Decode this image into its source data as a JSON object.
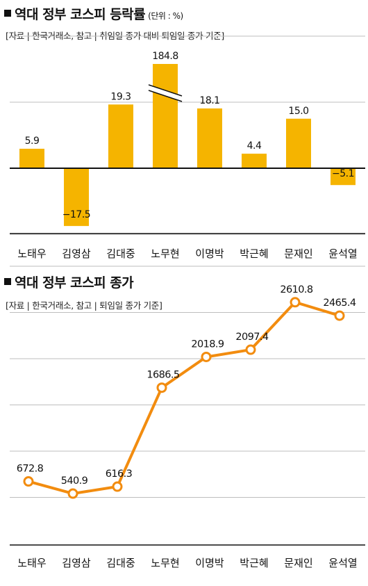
{
  "chart1": {
    "title": "역대 정부 코스피 등락률",
    "unit": "(단위 : %)",
    "source": "[자료 | 한국거래소, 참고 | 취임일 종가 대비 퇴임일 종가 기준]"
  },
  "chart2": {
    "title": "역대 정부 코스피 종가",
    "source": "[자료 | 한국거래소, 참고 | 퇴임일 종가 기준]"
  },
  "colors": {
    "bar": "#F5B400",
    "line": "#F28C0F",
    "grid": "#bdbdbd",
    "axis": "#111111"
  },
  "chart_data": [
    {
      "type": "bar",
      "title": "역대 정부 코스피 등락률",
      "categories": [
        "노태우",
        "김영삼",
        "김대중",
        "노무현",
        "이명박",
        "박근혜",
        "문재인",
        "윤석열"
      ],
      "values": [
        5.9,
        -17.5,
        19.3,
        184.8,
        18.1,
        4.4,
        15.0,
        -5.1
      ],
      "value_labels": [
        "5.9",
        "−17.5",
        "19.3",
        "184.8",
        "18.1",
        "4.4",
        "15.0",
        "−5.1"
      ],
      "axis_break": true,
      "ylim": [
        -30,
        30
      ],
      "grid": true
    },
    {
      "type": "line",
      "title": "역대 정부 코스피 종가",
      "categories": [
        "노태우",
        "김영삼",
        "김대중",
        "노무현",
        "이명박",
        "박근혜",
        "문재인",
        "윤석열"
      ],
      "values": [
        672.8,
        540.9,
        616.3,
        1686.5,
        2018.9,
        2097.4,
        2610.8,
        2465.4
      ],
      "value_labels": [
        "672.8",
        "540.9",
        "616.3",
        "1686.5",
        "2018.9",
        "2097.4",
        "2610.8",
        "2465.4"
      ],
      "ylim": [
        0,
        3000
      ],
      "grid": true
    }
  ]
}
